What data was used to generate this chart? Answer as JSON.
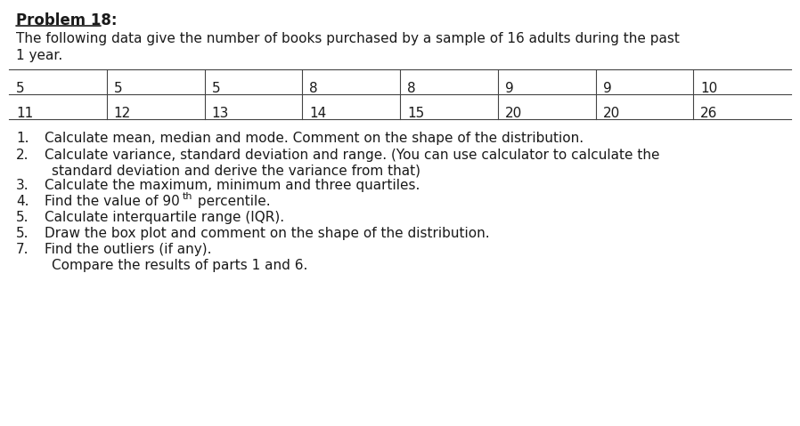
{
  "title": "Problem 18:",
  "intro_line1": "The following data give the number of books purchased by a sample of 16 adults during the past",
  "intro_line2": "1 year.",
  "table_row1": [
    "5",
    "5",
    "5",
    "8",
    "8",
    "9",
    "9",
    "10"
  ],
  "table_row2": [
    "11",
    "12",
    "13",
    "14",
    "15",
    "20",
    "20",
    "26"
  ],
  "q1": "Calculate mean, median and mode. Comment on the shape of the distribution.",
  "q2a": "Calculate variance, standard deviation and range. (You can use calculator to calculate the",
  "q2b": "standard deviation and derive the variance from that)",
  "q3": "Calculate the maximum, minimum and three quartiles.",
  "q4a": "Find the value of 90",
  "q4b": "th",
  "q4c": " percentile.",
  "q5": "Calculate interquartile range (IQR).",
  "q6": "Draw the box plot and comment on the shape of the distribution.",
  "q7": "Find the outliers (if any).",
  "q8": "Compare the results of parts 1 and 6.",
  "bg_color": "#ffffff",
  "text_color": "#1a1a1a",
  "fs_title": 12,
  "fs_body": 11,
  "fs_table": 11,
  "fs_super": 8
}
